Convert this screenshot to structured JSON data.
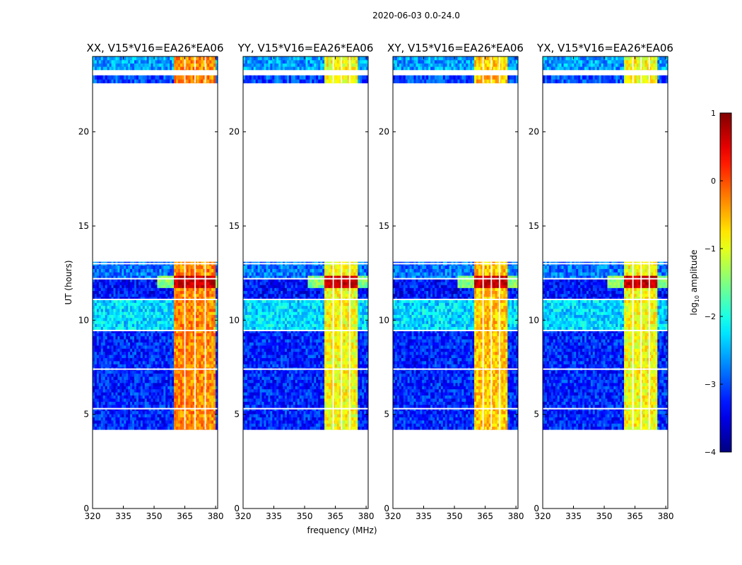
{
  "figure": {
    "suptitle": "2020-06-03 0.0-24.0",
    "xlabel": "frequency (MHz)",
    "ylabel": "UT (hours)"
  },
  "colorbar": {
    "label_prefix": "log",
    "label_sub": "10",
    "label_suffix": " amplitude",
    "min": -4,
    "max": 1,
    "ticks": [
      1,
      0,
      -1,
      -2,
      -3,
      -4
    ],
    "tick_labels": [
      "1",
      "0",
      "−1",
      "−2",
      "−3",
      "−4"
    ],
    "colormap": "jet"
  },
  "chart_data": [
    {
      "type": "heatmap",
      "title": "XX, V15*V16=EA26*EA06",
      "xlim": [
        320,
        381
      ],
      "ylim": [
        0,
        24
      ],
      "xticks": [
        320,
        335,
        350,
        365,
        380
      ],
      "xtick_labels": [
        "320",
        "335",
        "350",
        "365",
        "380"
      ],
      "yticks": [
        0,
        5,
        10,
        15,
        20
      ],
      "ytick_labels": [
        "0",
        "5",
        "10",
        "15",
        "20"
      ],
      "rfi_band_mhz": [
        360,
        380
      ],
      "rfi_band_log10_amp": -0.3
    },
    {
      "type": "heatmap",
      "title": "YY, V15*V16=EA26*EA06",
      "xlim": [
        320,
        381
      ],
      "ylim": [
        0,
        24
      ],
      "xticks": [
        320,
        335,
        350,
        365,
        380
      ],
      "xtick_labels": [
        "320",
        "335",
        "350",
        "365",
        "380"
      ],
      "yticks": [
        0,
        5,
        10,
        15,
        20
      ],
      "ytick_labels": [
        "0",
        "5",
        "10",
        "15",
        "20"
      ],
      "rfi_band_mhz": [
        360,
        376
      ],
      "rfi_band_log10_amp": -0.9
    },
    {
      "type": "heatmap",
      "title": "XY, V15*V16=EA26*EA06",
      "xlim": [
        320,
        381
      ],
      "ylim": [
        0,
        24
      ],
      "xticks": [
        320,
        335,
        350,
        365,
        380
      ],
      "xtick_labels": [
        "320",
        "335",
        "350",
        "365",
        "380"
      ],
      "yticks": [
        0,
        5,
        10,
        15,
        20
      ],
      "ytick_labels": [
        "0",
        "5",
        "10",
        "15",
        "20"
      ],
      "rfi_band_mhz": [
        360,
        376
      ],
      "rfi_band_log10_amp": -0.6
    },
    {
      "type": "heatmap",
      "title": "YX, V15*V16=EA26*EA06",
      "xlim": [
        320,
        381
      ],
      "ylim": [
        0,
        24
      ],
      "xticks": [
        320,
        335,
        350,
        365,
        380
      ],
      "xtick_labels": [
        "320",
        "335",
        "350",
        "365",
        "380"
      ],
      "yticks": [
        0,
        5,
        10,
        15,
        20
      ],
      "ytick_labels": [
        "0",
        "5",
        "10",
        "15",
        "20"
      ],
      "rfi_band_mhz": [
        360,
        376
      ],
      "rfi_band_log10_amp": -0.9
    }
  ],
  "data_segments_ut_hours": [
    {
      "start": 4.2,
      "end": 9.5,
      "base_log10_amp": -3.2
    },
    {
      "start": 9.5,
      "end": 11.1,
      "base_log10_amp": -2.3
    },
    {
      "start": 11.1,
      "end": 12.2,
      "base_log10_amp": -3.3
    },
    {
      "start": 12.2,
      "end": 13.1,
      "base_log10_amp": -2.8
    },
    {
      "start": 22.6,
      "end": 23.0,
      "base_log10_amp": -3.0
    },
    {
      "start": 23.3,
      "end": 24.0,
      "base_log10_amp": -2.6
    }
  ],
  "strong_rfi_ut_hours": [
    11.7,
    12.3
  ]
}
